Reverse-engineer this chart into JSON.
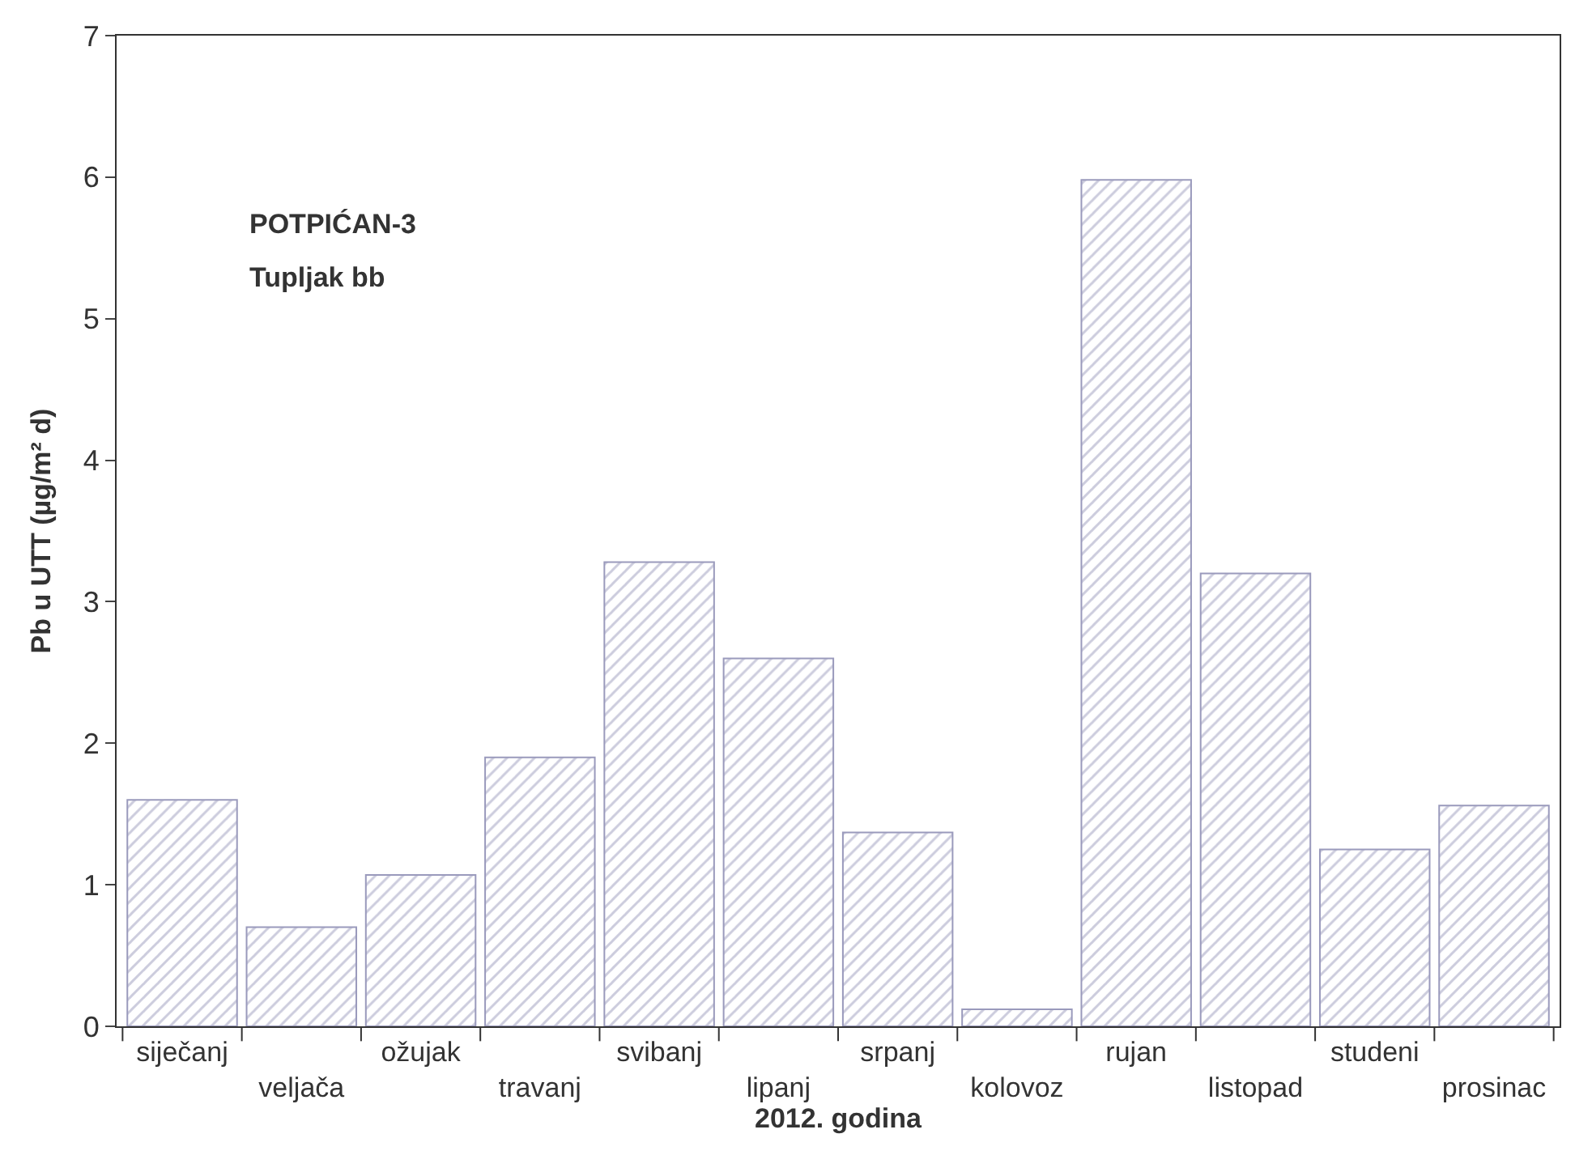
{
  "chart_data": {
    "type": "bar",
    "xlabel": "2012. godina",
    "ylabel": "Pb u UTT (µg/m² d)",
    "annotations": [
      "POTPIĆAN-3",
      "Tupljak bb"
    ],
    "categories": [
      "siječanj",
      "veljača",
      "ožujak",
      "travanj",
      "svibanj",
      "lipanj",
      "srpanj",
      "kolovoz",
      "rujan",
      "listopad",
      "studeni",
      "prosinac"
    ],
    "values": [
      1.6,
      0.7,
      1.07,
      1.9,
      3.28,
      2.6,
      1.37,
      0.12,
      5.98,
      3.2,
      1.25,
      1.56
    ],
    "color": "#9a9abc",
    "ylim": [
      0,
      7
    ],
    "yticks": [
      0,
      1,
      2,
      3,
      4,
      5,
      6,
      7
    ]
  }
}
